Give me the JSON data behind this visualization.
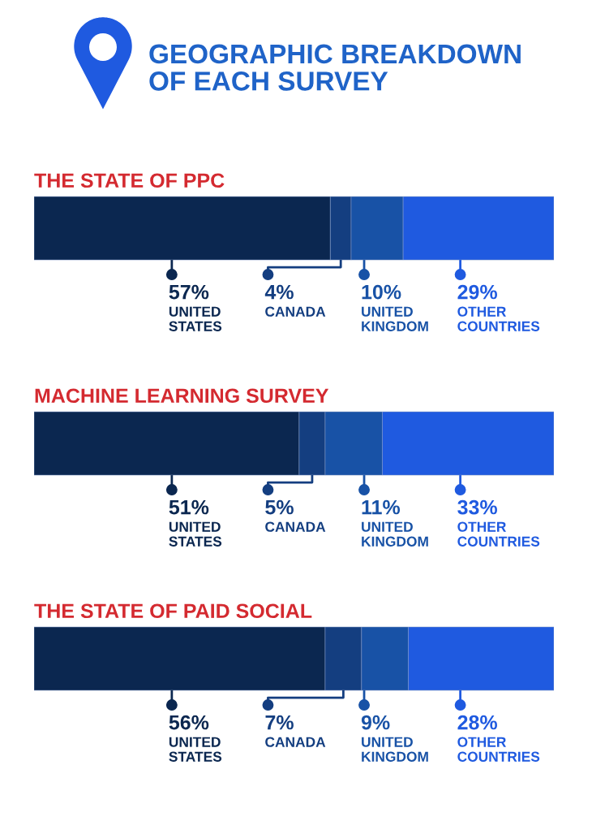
{
  "chart_data": {
    "type": "bar",
    "orientation": "horizontal",
    "stacked": true,
    "title": "GEOGRAPHIC BREAKDOWN\nOF EACH SURVEY",
    "categories": [
      "THE STATE OF PPC",
      "MACHINE LEARNING SURVEY",
      "THE STATE OF PAID SOCIAL"
    ],
    "xlim": [
      0,
      100
    ],
    "tick_labels": "y",
    "series": [
      {
        "name": "UNITED STATES",
        "color": "#0b2750",
        "values": [
          57,
          51,
          56
        ],
        "value_labels": [
          "57%",
          "51%",
          "56%"
        ]
      },
      {
        "name": "CANADA",
        "color": "#143e80",
        "values": [
          4,
          5,
          7
        ],
        "value_labels": [
          "4%",
          "5%",
          "7%"
        ]
      },
      {
        "name": "UNITED KINGDOM",
        "color": "#1852a6",
        "values": [
          10,
          11,
          9
        ],
        "value_labels": [
          "10%",
          "11%",
          "9%"
        ]
      },
      {
        "name": "OTHER COUNTRIES",
        "color": "#1f5ae0",
        "values": [
          29,
          33,
          28
        ],
        "value_labels": [
          "29%",
          "33%",
          "28%"
        ]
      }
    ]
  }
}
